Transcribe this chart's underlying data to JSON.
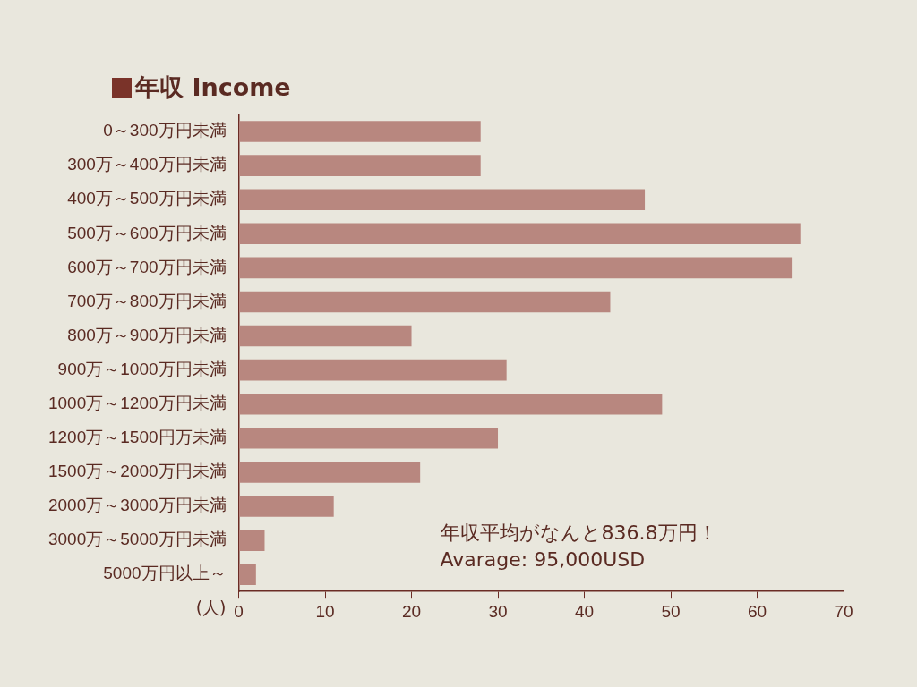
{
  "chart_data": {
    "type": "bar",
    "orientation": "horizontal",
    "title": "年収 Income",
    "xlabel": "(人)",
    "categories": [
      "0～300万円未満",
      "300万～400万円未満",
      "400万～500万円未満",
      "500万～600万円未満",
      "600万～700万円未満",
      "700万～800万円未満",
      "800万～900万円未満",
      "900万～1000万円未満",
      "1000万～1200万円未満",
      "1200万～1500円万未満",
      "1500万～2000万円未満",
      "2000万～3000万円未満",
      "3000万～5000万円未満",
      "5000万円以上～"
    ],
    "values": [
      28,
      28,
      47,
      65,
      64,
      43,
      20,
      31,
      49,
      30,
      21,
      11,
      3,
      2
    ],
    "color": "#b8877f",
    "xlim": [
      0,
      70
    ],
    "xticks": [
      0,
      10,
      20,
      30,
      40,
      50,
      60,
      70
    ],
    "grid": false,
    "legend": false,
    "annotations": [
      "年収平均がなんと836.8万円！",
      "Avarage: 95,000USD"
    ]
  }
}
